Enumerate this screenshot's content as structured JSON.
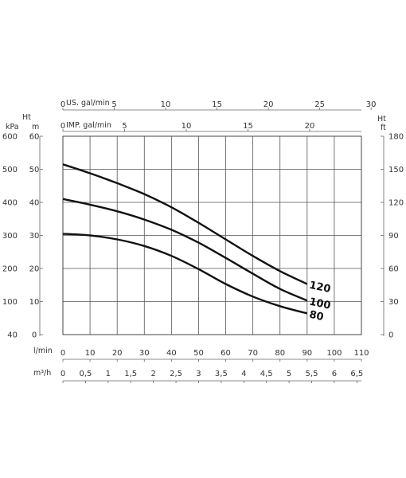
{
  "chart_data": {
    "type": "line",
    "grid": true,
    "xlabels": {
      "flow_lmin": "l/min",
      "flow_m3h": "m³/h",
      "us_gal": "US. gal/min",
      "imp_gal": "IMP. gal/min"
    },
    "ylabels": {
      "kpa": "kPa",
      "ht_m": "Ht",
      "m": "m",
      "ht_ft": "Ht",
      "ft": "ft"
    },
    "xlim": [
      0,
      110
    ],
    "ylim": [
      0,
      60
    ],
    "x_ticks_lmin": [
      "0",
      "10",
      "20",
      "30",
      "40",
      "50",
      "60",
      "70",
      "80",
      "90",
      "100",
      "110"
    ],
    "x_ticks_m3h": [
      "0",
      "0,5",
      "1",
      "1,5",
      "2",
      "2,5",
      "3",
      "3,5",
      "4",
      "4,5",
      "5",
      "5,5",
      "6",
      "6,5"
    ],
    "x_ticks_us": [
      "0",
      "5",
      "10",
      "15",
      "20",
      "25",
      "30"
    ],
    "x_ticks_imp": [
      "0",
      "5",
      "10",
      "15",
      "20"
    ],
    "y_ticks_m": [
      "0",
      "10",
      "20",
      "30",
      "40",
      "50",
      "60"
    ],
    "y_ticks_kpa": [
      "40",
      "100",
      "200",
      "300",
      "400",
      "500",
      "600"
    ],
    "y_ticks_ft": [
      "0",
      "30",
      "60",
      "90",
      "120",
      "150",
      "180"
    ],
    "series": [
      {
        "name": "120",
        "x": [
          0,
          10,
          20,
          30,
          40,
          50,
          60,
          70,
          80,
          90
        ],
        "y": [
          51.5,
          48.8,
          45.8,
          42.5,
          38.5,
          33.8,
          28.8,
          23.8,
          19.2,
          15.3
        ]
      },
      {
        "name": "100",
        "x": [
          0,
          10,
          20,
          30,
          40,
          50,
          60,
          70,
          80,
          90
        ],
        "y": [
          41,
          39.3,
          37.3,
          34.8,
          31.7,
          27.8,
          23.2,
          18.4,
          13.8,
          10.3
        ]
      },
      {
        "name": "80",
        "x": [
          0,
          10,
          20,
          30,
          40,
          50,
          60,
          70,
          80,
          90
        ],
        "y": [
          30.5,
          30,
          28.8,
          26.8,
          23.8,
          19.8,
          15.3,
          11.5,
          8.6,
          6.4
        ]
      }
    ]
  }
}
